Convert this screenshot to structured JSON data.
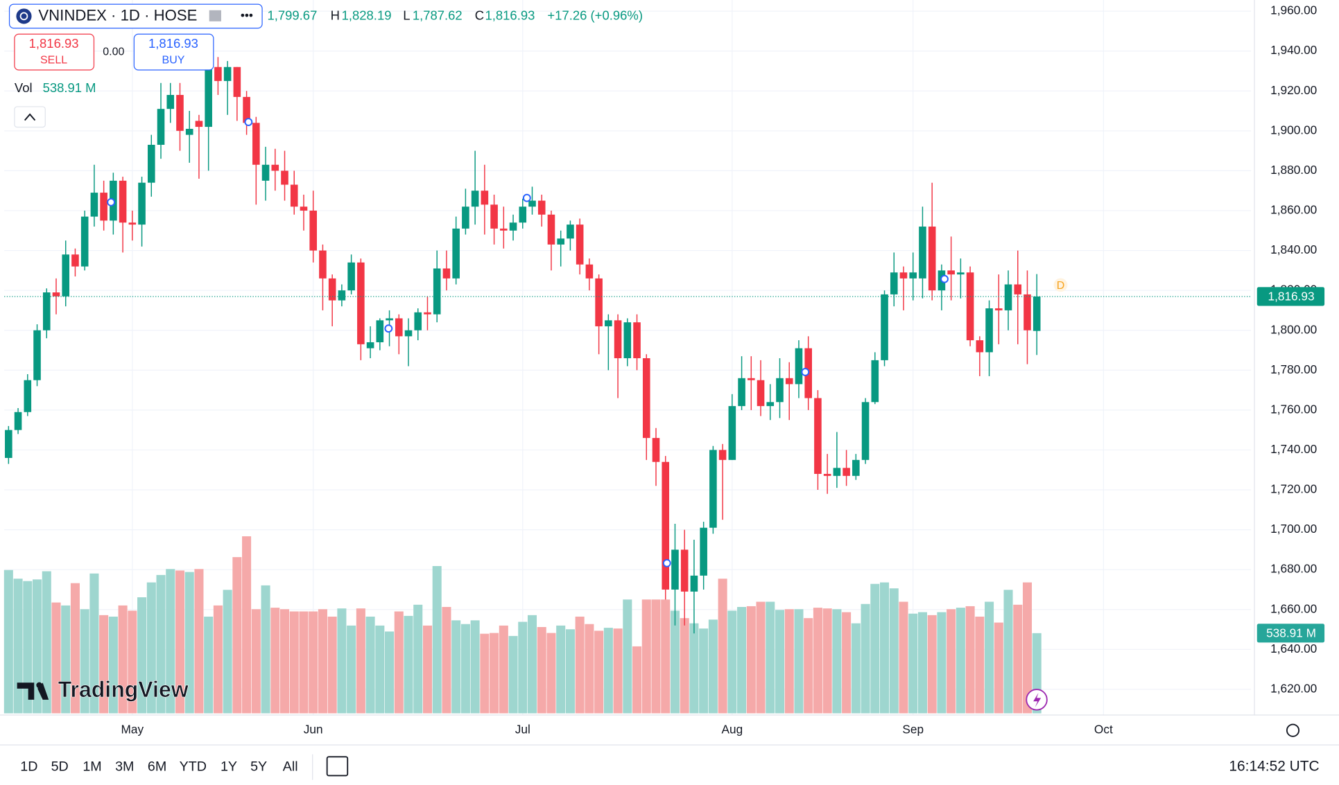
{
  "header": {
    "symbol": "VNINDEX · 1D · HOSE",
    "open_label": "1,799.67",
    "high_label": "1,828.19",
    "low_label": "1,787.62",
    "close_label": "1,816.93",
    "change": "+17.26 (+0.96%)",
    "sell_price": "1,816.93",
    "sell": "SELL",
    "spread": "0.00",
    "buy_price": "1,816.93",
    "buy": "BUY",
    "vol": "Vol",
    "vol_value": "538.91 M",
    "logo": "TradingView"
  },
  "toolbar": {
    "ranges": [
      "1D",
      "5D",
      "1M",
      "3M",
      "6M",
      "YTD",
      "1Y",
      "5Y",
      "All"
    ],
    "time": "16:14:52 UTC"
  },
  "chart_data": {
    "type": "candlestick",
    "up_color": "#089981",
    "down_color": "#f23645",
    "volume_up_color": "#9ed6cf",
    "volume_down_color": "#f5a9a9",
    "xlim": [
      -0.45,
      130.5
    ],
    "xticks": [
      {
        "value": 13,
        "label": "May"
      },
      {
        "value": 32,
        "label": "Jun"
      },
      {
        "value": 54,
        "label": "Jul"
      },
      {
        "value": 76,
        "label": "Aug"
      },
      {
        "value": 95,
        "label": "Sep"
      },
      {
        "value": 115,
        "label": "Oct"
      }
    ],
    "ylim": [
      1607.1,
      1965.6
    ],
    "yticks": [
      {
        "value": 1620,
        "label": "1,620.00"
      },
      {
        "value": 1640,
        "label": "1,640.00"
      },
      {
        "value": 1660,
        "label": "1,660.00"
      },
      {
        "value": 1680,
        "label": "1,680.00"
      },
      {
        "value": 1700,
        "label": "1,700.00"
      },
      {
        "value": 1720,
        "label": "1,720.00"
      },
      {
        "value": 1740,
        "label": "1,740.00"
      },
      {
        "value": 1760,
        "label": "1,760.00"
      },
      {
        "value": 1780,
        "label": "1,780.00"
      },
      {
        "value": 1800,
        "label": "1,800.00"
      },
      {
        "value": 1820,
        "label": "1,820.00"
      },
      {
        "value": 1840,
        "label": "1,840.00"
      },
      {
        "value": 1860,
        "label": "1,860.00"
      },
      {
        "value": 1880,
        "label": "1,880.00"
      },
      {
        "value": 1900,
        "label": "1,900.00"
      },
      {
        "value": 1920,
        "label": "1,920.00"
      },
      {
        "value": 1940,
        "label": "1,940.00"
      },
      {
        "value": 1960,
        "label": "1,960.00"
      }
    ],
    "vlim": [
      0,
      2300
    ],
    "grid": true,
    "last_price": 1816.93,
    "last_price_label": "1,816.93",
    "last_volume_label": "538.91 M",
    "open": [
      1736,
      1750,
      1759,
      1775,
      1800,
      1819,
      1817,
      1838,
      1832,
      1857,
      1869,
      1855,
      1875,
      1854,
      1853,
      1874,
      1893,
      1911,
      1918,
      1898,
      1905,
      1902,
      1932,
      1925,
      1932,
      1917,
      1904,
      1875,
      1883,
      1880,
      1873,
      1862,
      1860,
      1840,
      1826,
      1815,
      1820,
      1834,
      1791,
      1794,
      1805,
      1806,
      1797,
      1800,
      1809,
      1808,
      1831,
      1826,
      1851,
      1862,
      1870,
      1863,
      1851,
      1850,
      1854,
      1862,
      1865,
      1858,
      1843,
      1846,
      1853,
      1833,
      1826,
      1802,
      1805,
      1786,
      1804,
      1786,
      1746,
      1734,
      1670,
      1690,
      1669,
      1677,
      1701,
      1740,
      1735,
      1762,
      1776,
      1775,
      1762,
      1764,
      1776,
      1773,
      1791,
      1766,
      1728,
      1727,
      1731,
      1727,
      1735,
      1764,
      1785,
      1818,
      1829,
      1826,
      1826,
      1852,
      1820,
      1830,
      1828,
      1829,
      1795,
      1789,
      1811,
      1810,
      1823,
      1818,
      1799.67
    ],
    "high": [
      1752,
      1761,
      1778,
      1803,
      1821,
      1826,
      1845,
      1841,
      1860,
      1883,
      1875,
      1879,
      1877,
      1860,
      1877,
      1898,
      1924,
      1924,
      1924,
      1910,
      1908,
      1934,
      1937,
      1935,
      1932,
      1920,
      1907,
      1892,
      1891,
      1890,
      1880,
      1868,
      1870,
      1843,
      1828,
      1823,
      1838,
      1836,
      1802,
      1806,
      1810,
      1808,
      1806,
      1811,
      1817,
      1840,
      1840,
      1857,
      1871,
      1890,
      1883,
      1868,
      1862,
      1858,
      1866,
      1872,
      1868,
      1860,
      1850,
      1855,
      1856,
      1836,
      1828,
      1808,
      1808,
      1806,
      1808,
      1788,
      1751,
      1737,
      1703,
      1700,
      1695,
      1704,
      1742,
      1743,
      1768,
      1787,
      1787,
      1785,
      1773,
      1786,
      1784,
      1795,
      1797,
      1770,
      1738,
      1749,
      1740,
      1738,
      1766,
      1789,
      1820,
      1839,
      1832,
      1839,
      1862,
      1874,
      1833,
      1847,
      1836,
      1832,
      1797,
      1815,
      1828,
      1830,
      1840,
      1830,
      1828.19
    ],
    "low": [
      1733,
      1748,
      1757,
      1772,
      1796,
      1808,
      1812,
      1827,
      1830,
      1852,
      1850,
      1848,
      1839,
      1845,
      1842,
      1867,
      1886,
      1904,
      1890,
      1884,
      1876,
      1880,
      1918,
      1908,
      1905,
      1898,
      1863,
      1865,
      1870,
      1865,
      1858,
      1850,
      1834,
      1810,
      1802,
      1812,
      1818,
      1785,
      1786,
      1790,
      1792,
      1788,
      1782,
      1795,
      1800,
      1804,
      1820,
      1823,
      1848,
      1853,
      1848,
      1843,
      1841,
      1845,
      1851,
      1858,
      1852,
      1830,
      1832,
      1840,
      1828,
      1820,
      1788,
      1780,
      1766,
      1782,
      1780,
      1735,
      1722,
      1665,
      1652,
      1652,
      1648,
      1670,
      1698,
      1705,
      1735,
      1760,
      1760,
      1757,
      1755,
      1756,
      1755,
      1766,
      1760,
      1720,
      1718,
      1721,
      1722,
      1725,
      1733,
      1763,
      1782,
      1812,
      1810,
      1815,
      1816,
      1815,
      1810,
      1815,
      1816,
      1792,
      1777,
      1777,
      1793,
      1800,
      1793,
      1783,
      1787.62
    ],
    "close": [
      1750,
      1759,
      1775,
      1800,
      1819,
      1817,
      1838,
      1832,
      1857,
      1869,
      1855,
      1875,
      1854,
      1853,
      1874,
      1893,
      1911,
      1918,
      1900,
      1901,
      1902,
      1932,
      1925,
      1932,
      1917,
      1904,
      1883,
      1883,
      1880,
      1873,
      1862,
      1860,
      1840,
      1826,
      1815,
      1820,
      1834,
      1793,
      1794,
      1805,
      1806,
      1797,
      1800,
      1809,
      1808,
      1831,
      1826,
      1851,
      1862,
      1870,
      1863,
      1851,
      1850,
      1854,
      1862,
      1865,
      1858,
      1843,
      1846,
      1853,
      1833,
      1826,
      1802,
      1805,
      1786,
      1804,
      1786,
      1746,
      1734,
      1670,
      1690,
      1669,
      1677,
      1701,
      1740,
      1735,
      1762,
      1776,
      1775,
      1762,
      1764,
      1776,
      1773,
      1791,
      1766,
      1728,
      1727,
      1731,
      1727,
      1735,
      1764,
      1785,
      1818,
      1829,
      1826,
      1829,
      1852,
      1820,
      1830,
      1828,
      1829,
      1795,
      1789,
      1811,
      1810,
      1823,
      1818,
      1800,
      1816.93
    ],
    "volume": [
      963,
      905,
      889,
      900,
      955,
      745,
      725,
      875,
      700,
      940,
      660,
      650,
      725,
      690,
      780,
      880,
      930,
      970,
      960,
      950,
      970,
      650,
      725,
      830,
      1050,
      1190,
      700,
      860,
      710,
      700,
      685,
      685,
      685,
      700,
      650,
      705,
      590,
      705,
      650,
      590,
      550,
      685,
      655,
      730,
      590,
      990,
      715,
      625,
      600,
      625,
      535,
      540,
      590,
      520,
      615,
      660,
      580,
      540,
      590,
      565,
      650,
      600,
      555,
      575,
      570,
      765,
      450,
      765,
      765,
      765,
      690,
      640,
      605,
      570,
      630,
      905,
      690,
      715,
      720,
      750,
      750,
      695,
      700,
      700,
      640,
      710,
      705,
      700,
      680,
      605,
      735,
      870,
      880,
      840,
      750,
      670,
      680,
      660,
      680,
      700,
      710,
      720,
      650,
      750,
      610,
      830,
      730,
      880,
      538.91
    ]
  }
}
